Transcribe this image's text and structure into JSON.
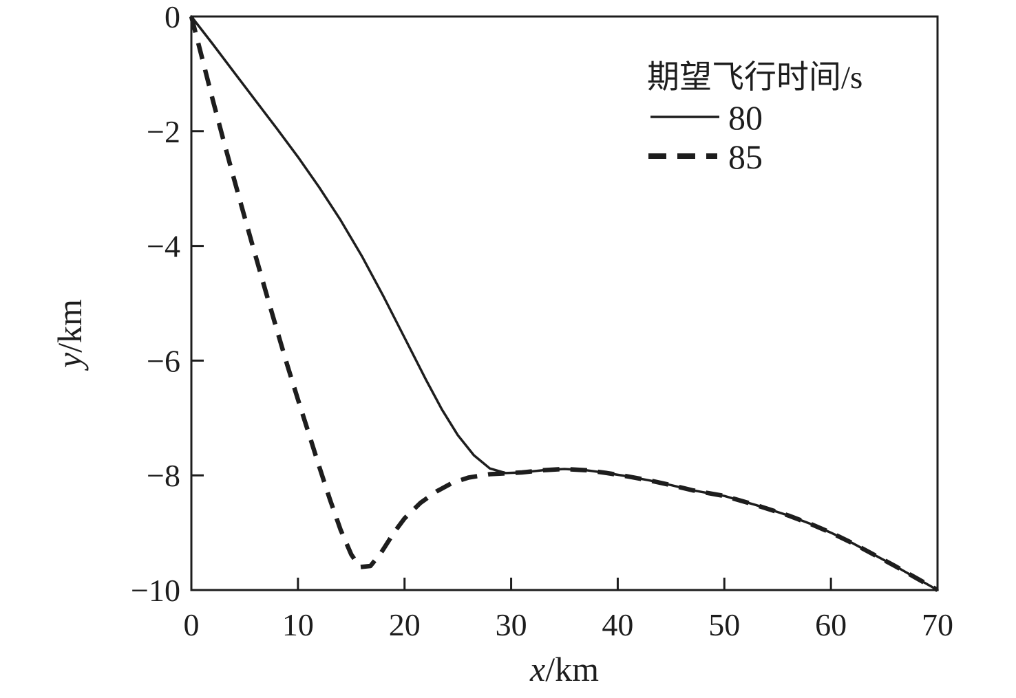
{
  "figure": {
    "background": "#ffffff",
    "ink_color": "#1d1d1d"
  },
  "chart_data": {
    "type": "line",
    "title": "",
    "xlabel": "x/km",
    "xlabel_var": "x",
    "xlabel_unit": "/km",
    "ylabel": "y/km",
    "ylabel_var": "y",
    "ylabel_unit": "/km",
    "xlim": [
      0,
      70
    ],
    "ylim": [
      -10,
      0
    ],
    "grid": false,
    "x_ticks": {
      "values": [
        0,
        10,
        20,
        30,
        40,
        50,
        60,
        70
      ],
      "labels": [
        "0",
        "10",
        "20",
        "30",
        "40",
        "50",
        "60",
        "70"
      ]
    },
    "y_ticks": {
      "values": [
        0,
        -2,
        -4,
        -6,
        -8,
        -10
      ],
      "labels": [
        "0",
        "−2",
        "−4",
        "−6",
        "−8",
        "−10"
      ]
    },
    "legend": {
      "title": "期望飞行时间/s",
      "position": "upper right",
      "entries": [
        {
          "label": "80",
          "style": "solid"
        },
        {
          "label": "85",
          "style": "dashed"
        }
      ]
    },
    "series": [
      {
        "name": "80",
        "style": "solid",
        "points": [
          [
            0,
            0
          ],
          [
            2,
            -0.48
          ],
          [
            4,
            -0.97
          ],
          [
            6,
            -1.46
          ],
          [
            8,
            -1.95
          ],
          [
            10,
            -2.45
          ],
          [
            12,
            -2.98
          ],
          [
            14,
            -3.55
          ],
          [
            16,
            -4.18
          ],
          [
            18,
            -4.87
          ],
          [
            20,
            -5.6
          ],
          [
            22,
            -6.33
          ],
          [
            23.5,
            -6.85
          ],
          [
            25,
            -7.3
          ],
          [
            26.5,
            -7.65
          ],
          [
            28,
            -7.88
          ],
          [
            29.5,
            -7.96
          ],
          [
            31,
            -7.95
          ],
          [
            33,
            -7.91
          ],
          [
            35,
            -7.89
          ],
          [
            37,
            -7.91
          ],
          [
            39,
            -7.96
          ],
          [
            41,
            -8.02
          ],
          [
            43,
            -8.09
          ],
          [
            45,
            -8.17
          ],
          [
            47,
            -8.26
          ],
          [
            50,
            -8.36
          ],
          [
            53,
            -8.52
          ],
          [
            56,
            -8.7
          ],
          [
            58,
            -8.84
          ],
          [
            60,
            -9.0
          ],
          [
            62,
            -9.18
          ],
          [
            64,
            -9.38
          ],
          [
            66,
            -9.58
          ],
          [
            68,
            -9.79
          ],
          [
            70,
            -10
          ]
        ]
      },
      {
        "name": "85",
        "style": "dashed",
        "points": [
          [
            0,
            0
          ],
          [
            1,
            -0.72
          ],
          [
            2,
            -1.45
          ],
          [
            3,
            -2.15
          ],
          [
            4,
            -2.83
          ],
          [
            5,
            -3.5
          ],
          [
            6,
            -4.16
          ],
          [
            7,
            -4.81
          ],
          [
            8,
            -5.45
          ],
          [
            9,
            -6.08
          ],
          [
            10,
            -6.68
          ],
          [
            11,
            -7.26
          ],
          [
            12,
            -7.85
          ],
          [
            13,
            -8.42
          ],
          [
            14,
            -8.95
          ],
          [
            15,
            -9.38
          ],
          [
            15.8,
            -9.6
          ],
          [
            16.8,
            -9.58
          ],
          [
            17.8,
            -9.35
          ],
          [
            19,
            -9.0
          ],
          [
            20,
            -8.75
          ],
          [
            21.5,
            -8.48
          ],
          [
            23,
            -8.28
          ],
          [
            24.5,
            -8.13
          ],
          [
            26,
            -8.04
          ],
          [
            28,
            -7.98
          ],
          [
            30,
            -7.96
          ],
          [
            31,
            -7.95
          ],
          [
            33,
            -7.91
          ],
          [
            35,
            -7.89
          ],
          [
            37,
            -7.91
          ],
          [
            39,
            -7.96
          ],
          [
            41,
            -8.02
          ],
          [
            43,
            -8.09
          ],
          [
            45,
            -8.17
          ],
          [
            47,
            -8.26
          ],
          [
            50,
            -8.36
          ],
          [
            53,
            -8.52
          ],
          [
            56,
            -8.7
          ],
          [
            58,
            -8.84
          ],
          [
            60,
            -9.0
          ],
          [
            62,
            -9.18
          ],
          [
            64,
            -9.38
          ],
          [
            66,
            -9.58
          ],
          [
            68,
            -9.79
          ],
          [
            70,
            -10
          ]
        ]
      }
    ]
  }
}
